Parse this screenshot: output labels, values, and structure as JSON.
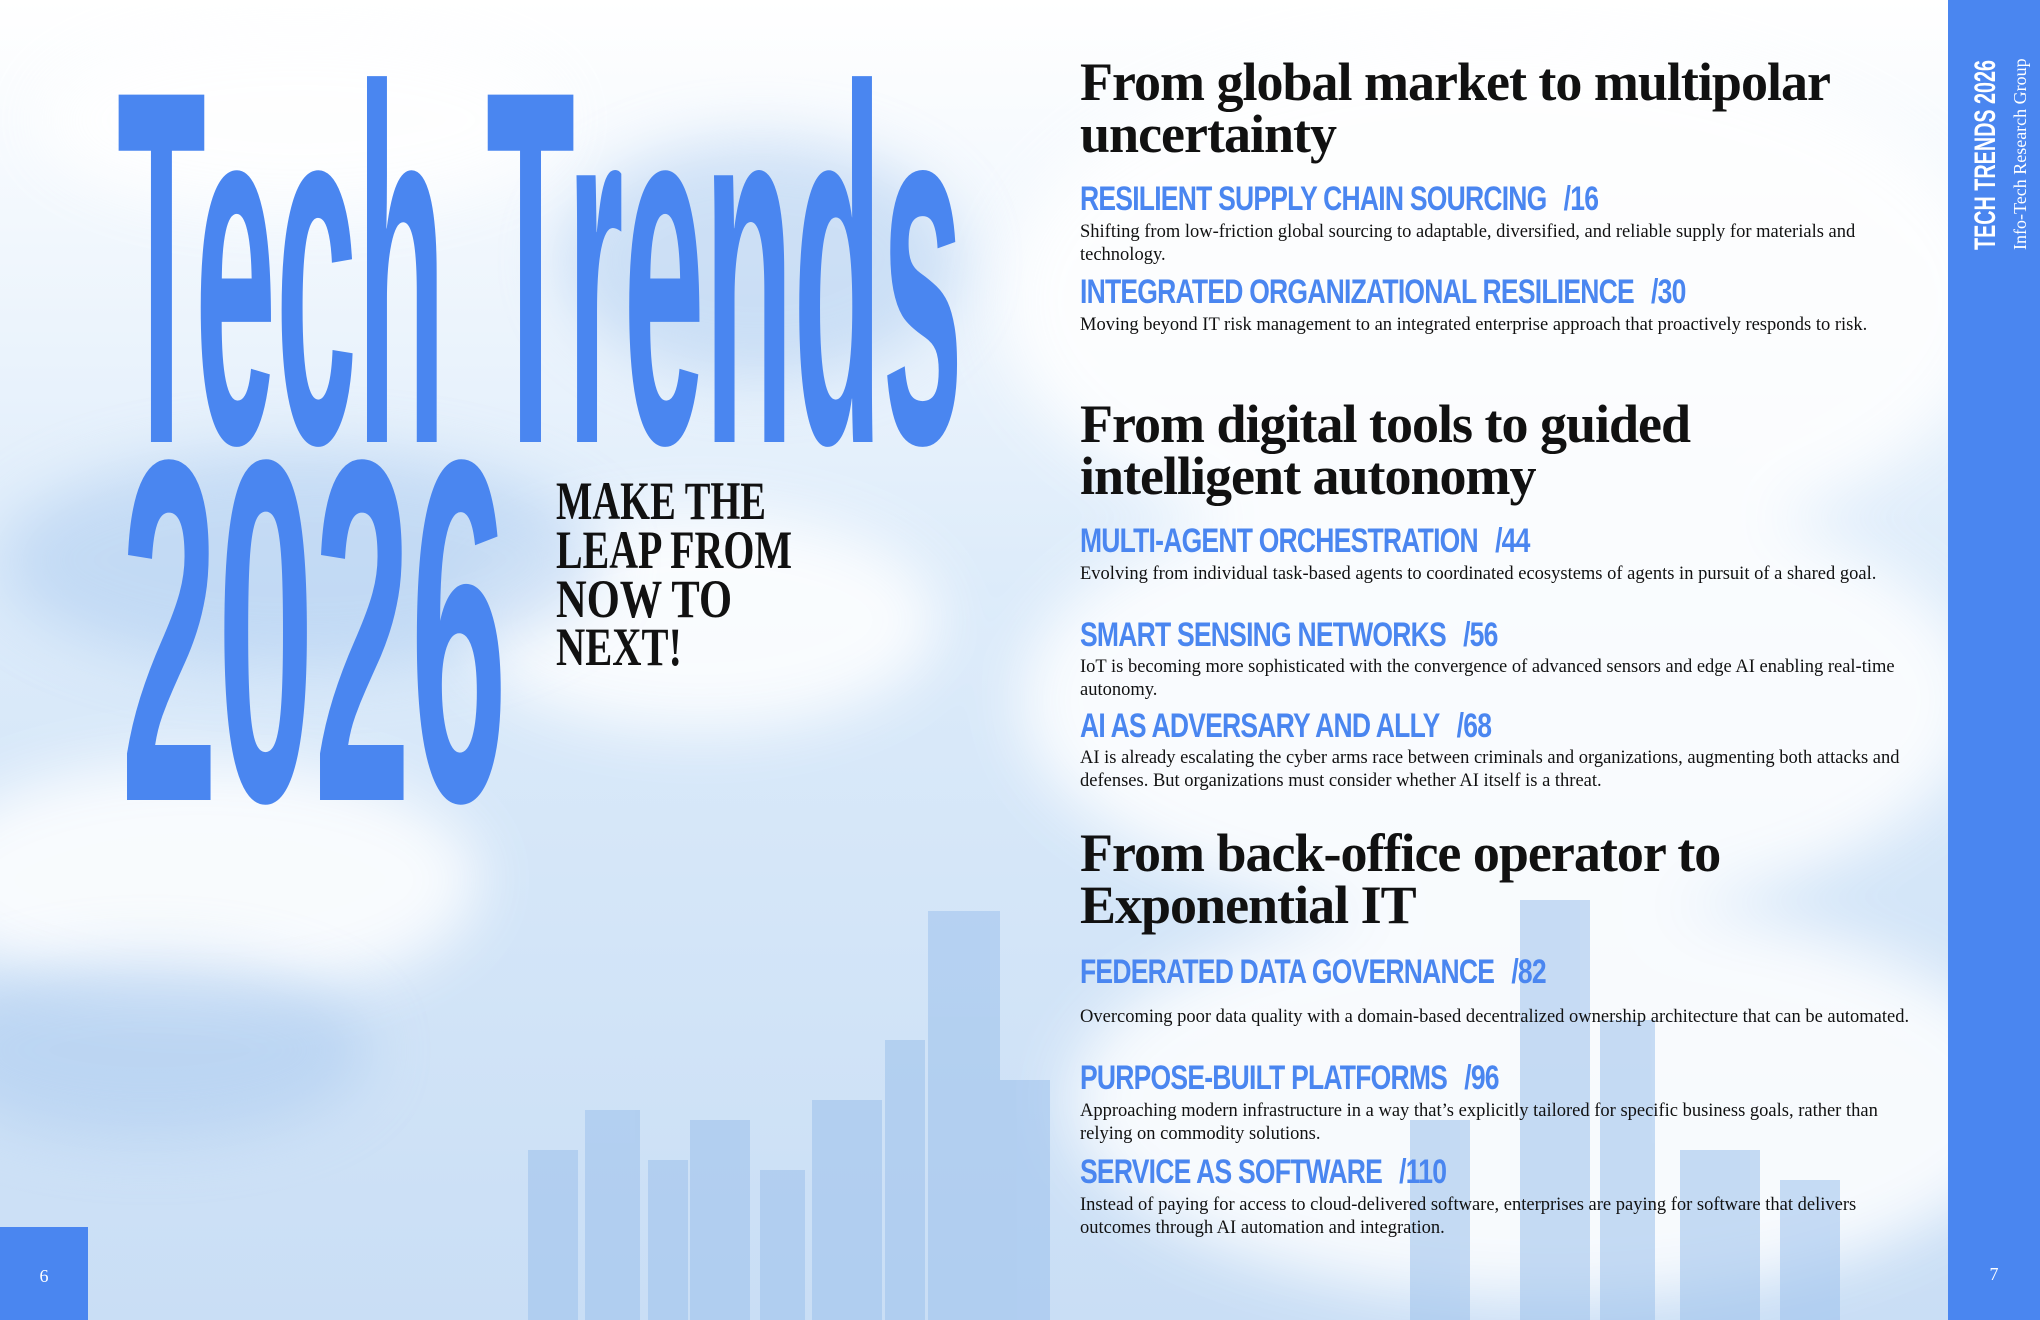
{
  "cover": {
    "title_line1": "Tech Trends",
    "title_line2": "2026",
    "tagline": [
      "MAKE THE",
      "LEAP FROM",
      "NOW TO",
      "NEXT!"
    ]
  },
  "sections": [
    {
      "heading": [
        "From global market to multipolar",
        "uncertainty"
      ],
      "items": [
        {
          "title": "RESILIENT SUPPLY CHAIN SOURCING",
          "page": "/16",
          "description": "Shifting from low-friction global sourcing to adaptable, diversified, and reliable supply for materials and technology."
        },
        {
          "title": "INTEGRATED ORGANIZATIONAL RESILIENCE",
          "page": "/30",
          "description": "Moving beyond IT risk management to an integrated enterprise approach that proactively responds to risk."
        }
      ]
    },
    {
      "heading": [
        "From digital tools to guided",
        "intelligent autonomy"
      ],
      "items": [
        {
          "title": "MULTI-AGENT ORCHESTRATION",
          "page": "/44",
          "description": "Evolving from individual task-based agents to coordinated ecosystems of agents in pursuit of a shared goal."
        },
        {
          "title": "SMART SENSING NETWORKS",
          "page": "/56",
          "description": "IoT is becoming more sophisticated with the convergence of advanced sensors and edge AI enabling real-time autonomy."
        },
        {
          "title": "AI AS ADVERSARY AND ALLY",
          "page": "/68",
          "description": "AI is already escalating the cyber arms race between criminals and organizations, augmenting both attacks and defenses. But organizations must consider whether AI itself is a threat."
        }
      ]
    },
    {
      "heading": [
        "From back-office operator to",
        "Exponential IT"
      ],
      "items": [
        {
          "title": "FEDERATED DATA GOVERNANCE",
          "page": "/82",
          "description": "Overcoming poor data quality with a domain-based decentralized ownership architecture that can be automated."
        },
        {
          "title": "PURPOSE-BUILT PLATFORMS",
          "page": "/96",
          "description": "Approaching modern infrastructure in a way that’s explicitly tailored for specific business goals, rather than relying on commodity solutions."
        },
        {
          "title": "SERVICE AS SOFTWARE",
          "page": "/110",
          "description": "Instead of paying for access to cloud-delivered software, enterprises are paying for software that delivers outcomes through AI automation and integration."
        }
      ]
    }
  ],
  "sidebar": {
    "title": "TECH TRENDS 2026",
    "publisher": "Info-Tech Research Group"
  },
  "page_numbers": {
    "left": "6",
    "right": "7"
  }
}
